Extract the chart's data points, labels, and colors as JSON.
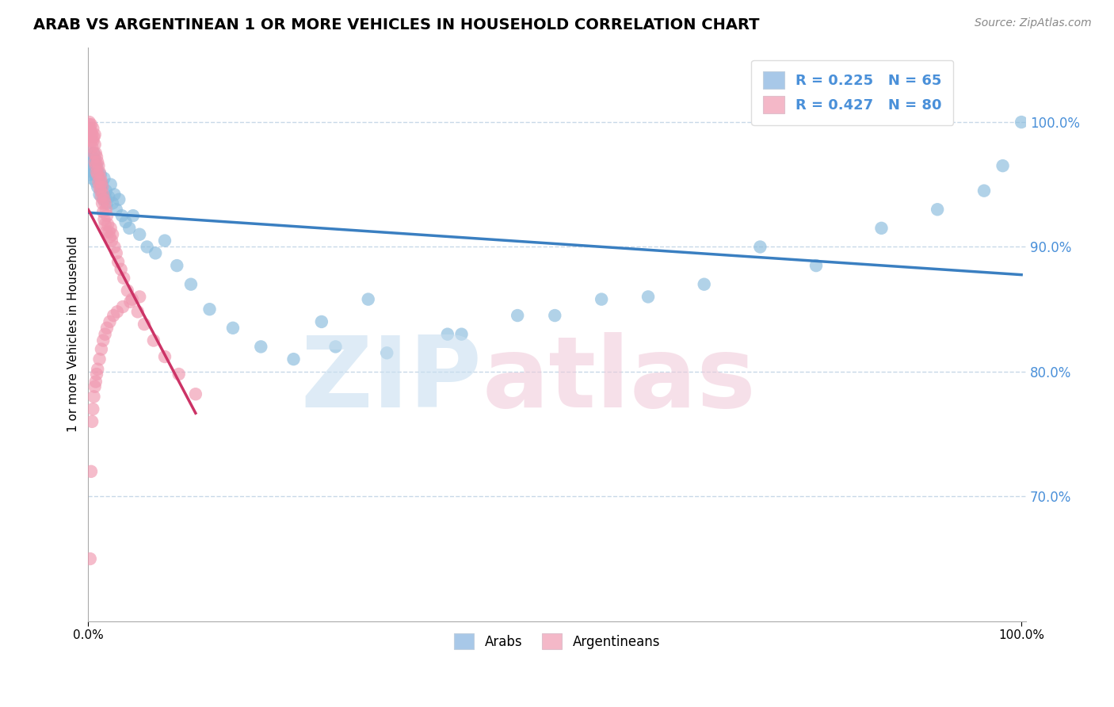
{
  "title": "ARAB VS ARGENTINEAN 1 OR MORE VEHICLES IN HOUSEHOLD CORRELATION CHART",
  "source": "Source: ZipAtlas.com",
  "ylabel": "1 or more Vehicles in Household",
  "legend_entries": [
    {
      "label": "R = 0.225   N = 65",
      "color": "#a8c8e8"
    },
    {
      "label": "R = 0.427   N = 80",
      "color": "#f4b8c8"
    }
  ],
  "legend_bottom": [
    "Arabs",
    "Argentineans"
  ],
  "arab_color": "#88bbdd",
  "argentinean_color": "#f098b0",
  "trend_arab_color": "#3a7fc1",
  "trend_arg_color": "#cc3366",
  "grid_color": "#c8d8e8",
  "ytick_vals": [
    0.7,
    0.8,
    0.9,
    1.0
  ],
  "ylim": [
    0.6,
    1.06
  ],
  "xlim": [
    0.0,
    1.005
  ],
  "arab_x": [
    0.001,
    0.002,
    0.002,
    0.003,
    0.003,
    0.004,
    0.004,
    0.005,
    0.005,
    0.006,
    0.006,
    0.007,
    0.007,
    0.008,
    0.009,
    0.01,
    0.01,
    0.011,
    0.012,
    0.013,
    0.014,
    0.015,
    0.016,
    0.017,
    0.018,
    0.019,
    0.02,
    0.022,
    0.024,
    0.026,
    0.028,
    0.03,
    0.033,
    0.036,
    0.04,
    0.044,
    0.048,
    0.055,
    0.063,
    0.072,
    0.082,
    0.095,
    0.11,
    0.13,
    0.155,
    0.185,
    0.22,
    0.265,
    0.32,
    0.385,
    0.46,
    0.55,
    0.66,
    0.78,
    0.72,
    0.85,
    0.91,
    0.96,
    0.98,
    1.0,
    0.25,
    0.3,
    0.4,
    0.5,
    0.6
  ],
  "arab_y": [
    0.965,
    0.958,
    0.97,
    0.962,
    0.975,
    0.968,
    0.955,
    0.972,
    0.96,
    0.975,
    0.968,
    0.958,
    0.97,
    0.952,
    0.965,
    0.96,
    0.948,
    0.955,
    0.942,
    0.958,
    0.945,
    0.95,
    0.938,
    0.955,
    0.94,
    0.945,
    0.935,
    0.94,
    0.95,
    0.935,
    0.942,
    0.93,
    0.938,
    0.925,
    0.92,
    0.915,
    0.925,
    0.91,
    0.9,
    0.895,
    0.905,
    0.885,
    0.87,
    0.85,
    0.835,
    0.82,
    0.81,
    0.82,
    0.815,
    0.83,
    0.845,
    0.858,
    0.87,
    0.885,
    0.9,
    0.915,
    0.93,
    0.945,
    0.965,
    1.0,
    0.84,
    0.858,
    0.83,
    0.845,
    0.86
  ],
  "arg_x": [
    0.001,
    0.001,
    0.002,
    0.002,
    0.003,
    0.003,
    0.003,
    0.004,
    0.004,
    0.005,
    0.005,
    0.006,
    0.006,
    0.007,
    0.007,
    0.007,
    0.008,
    0.008,
    0.009,
    0.009,
    0.01,
    0.01,
    0.011,
    0.011,
    0.012,
    0.012,
    0.013,
    0.013,
    0.014,
    0.014,
    0.015,
    0.015,
    0.016,
    0.016,
    0.017,
    0.017,
    0.018,
    0.018,
    0.019,
    0.019,
    0.02,
    0.021,
    0.022,
    0.023,
    0.024,
    0.025,
    0.026,
    0.028,
    0.03,
    0.032,
    0.035,
    0.038,
    0.042,
    0.047,
    0.053,
    0.06,
    0.07,
    0.082,
    0.097,
    0.115,
    0.002,
    0.003,
    0.004,
    0.005,
    0.006,
    0.007,
    0.008,
    0.009,
    0.01,
    0.012,
    0.014,
    0.016,
    0.018,
    0.02,
    0.023,
    0.027,
    0.031,
    0.037,
    0.045,
    0.055
  ],
  "arg_y": [
    0.998,
    1.0,
    0.995,
    0.988,
    0.992,
    0.985,
    0.998,
    0.99,
    0.98,
    0.985,
    0.995,
    0.988,
    0.975,
    0.982,
    0.968,
    0.99,
    0.975,
    0.965,
    0.972,
    0.96,
    0.968,
    0.958,
    0.965,
    0.952,
    0.96,
    0.948,
    0.955,
    0.945,
    0.952,
    0.94,
    0.948,
    0.935,
    0.942,
    0.928,
    0.938,
    0.922,
    0.935,
    0.918,
    0.93,
    0.912,
    0.925,
    0.918,
    0.912,
    0.908,
    0.915,
    0.905,
    0.91,
    0.9,
    0.895,
    0.888,
    0.882,
    0.875,
    0.865,
    0.858,
    0.848,
    0.838,
    0.825,
    0.812,
    0.798,
    0.782,
    0.65,
    0.72,
    0.76,
    0.77,
    0.78,
    0.788,
    0.792,
    0.798,
    0.802,
    0.81,
    0.818,
    0.825,
    0.83,
    0.835,
    0.84,
    0.845,
    0.848,
    0.852,
    0.856,
    0.86
  ]
}
